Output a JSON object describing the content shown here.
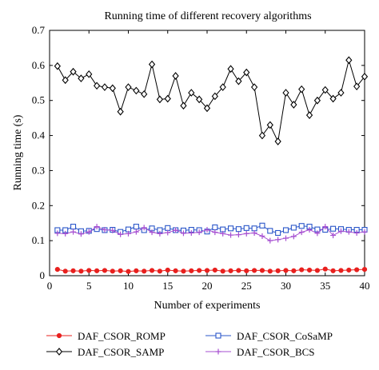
{
  "chart_data": {
    "type": "line",
    "title": "Running time of different recovery algorithms",
    "xlabel": "Number of experiments",
    "ylabel": "Running time (s)",
    "xlim": [
      0,
      40
    ],
    "ylim": [
      0,
      0.7
    ],
    "x_ticks": [
      "0",
      "5",
      "10",
      "15",
      "20",
      "25",
      "30",
      "35",
      "40"
    ],
    "y_ticks": [
      "0",
      "0.1",
      "0.2",
      "0.3",
      "0.4",
      "0.5",
      "0.6",
      "0.7"
    ],
    "grid": false,
    "legend_position": "bottom",
    "x": [
      1,
      2,
      3,
      4,
      5,
      6,
      7,
      8,
      9,
      10,
      11,
      12,
      13,
      14,
      15,
      16,
      17,
      18,
      19,
      20,
      21,
      22,
      23,
      24,
      25,
      26,
      27,
      28,
      29,
      30,
      31,
      32,
      33,
      34,
      35,
      36,
      37,
      38,
      39,
      40
    ],
    "series": [
      {
        "name": "DAF_CSOR_ROMP",
        "color": "#e8201e",
        "marker": "dot",
        "values": [
          0.018,
          0.013,
          0.014,
          0.013,
          0.015,
          0.014,
          0.015,
          0.013,
          0.014,
          0.012,
          0.014,
          0.013,
          0.015,
          0.013,
          0.016,
          0.014,
          0.013,
          0.014,
          0.015,
          0.015,
          0.016,
          0.013,
          0.014,
          0.015,
          0.014,
          0.015,
          0.015,
          0.013,
          0.014,
          0.015,
          0.014,
          0.017,
          0.016,
          0.015,
          0.019,
          0.014,
          0.015,
          0.016,
          0.017,
          0.018
        ]
      },
      {
        "name": "DAF_CSOR_CoSaMP",
        "color": "#2a56c9",
        "marker": "square",
        "values": [
          0.13,
          0.13,
          0.14,
          0.127,
          0.128,
          0.133,
          0.13,
          0.131,
          0.125,
          0.132,
          0.14,
          0.13,
          0.135,
          0.13,
          0.136,
          0.13,
          0.129,
          0.131,
          0.13,
          0.126,
          0.138,
          0.132,
          0.135,
          0.133,
          0.136,
          0.135,
          0.143,
          0.128,
          0.122,
          0.13,
          0.137,
          0.142,
          0.14,
          0.132,
          0.131,
          0.134,
          0.133,
          0.131,
          0.131,
          0.131
        ]
      },
      {
        "name": "DAF_CSOR_SAMP",
        "color": "#000000",
        "marker": "diamond",
        "values": [
          0.598,
          0.558,
          0.582,
          0.563,
          0.575,
          0.542,
          0.538,
          0.535,
          0.468,
          0.538,
          0.528,
          0.518,
          0.603,
          0.503,
          0.505,
          0.57,
          0.485,
          0.522,
          0.503,
          0.478,
          0.512,
          0.538,
          0.59,
          0.555,
          0.58,
          0.538,
          0.4,
          0.43,
          0.383,
          0.522,
          0.488,
          0.532,
          0.458,
          0.5,
          0.53,
          0.505,
          0.522,
          0.615,
          0.54,
          0.568
        ]
      },
      {
        "name": "DAF_CSOR_BCS",
        "color": "#a64fd1",
        "marker": "plus",
        "values": [
          0.121,
          0.12,
          0.125,
          0.119,
          0.125,
          0.14,
          0.131,
          0.129,
          0.118,
          0.12,
          0.125,
          0.137,
          0.124,
          0.12,
          0.123,
          0.13,
          0.121,
          0.122,
          0.124,
          0.131,
          0.124,
          0.12,
          0.116,
          0.117,
          0.12,
          0.122,
          0.113,
          0.1,
          0.103,
          0.107,
          0.112,
          0.124,
          0.131,
          0.121,
          0.14,
          0.115,
          0.127,
          0.125,
          0.122,
          0.125
        ]
      }
    ]
  }
}
